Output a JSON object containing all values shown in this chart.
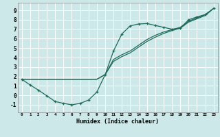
{
  "title": "",
  "xlabel": "Humidex (Indice chaleur)",
  "ylabel": "",
  "background_color": "#cde8e8",
  "grid_color": "#ffffff",
  "line_color": "#1a6b5a",
  "xlim": [
    -0.5,
    23.5
  ],
  "ylim": [
    -1.8,
    9.8
  ],
  "xticks": [
    0,
    1,
    2,
    3,
    4,
    5,
    6,
    7,
    8,
    9,
    10,
    11,
    12,
    13,
    14,
    15,
    16,
    17,
    18,
    19,
    20,
    21,
    22,
    23
  ],
  "yticks": [
    -1,
    0,
    1,
    2,
    3,
    4,
    5,
    6,
    7,
    8,
    9
  ],
  "line1_x": [
    0,
    1,
    2,
    3,
    4,
    5,
    6,
    7,
    8,
    9,
    10,
    11,
    12,
    13,
    14,
    15,
    16,
    17,
    18,
    19,
    20,
    21,
    22,
    23
  ],
  "line1_y": [
    1.7,
    1.1,
    0.55,
    -0.05,
    -0.65,
    -0.85,
    -1.0,
    -0.85,
    -0.5,
    0.35,
    2.2,
    4.7,
    6.5,
    7.35,
    7.55,
    7.6,
    7.4,
    7.2,
    7.0,
    7.1,
    8.0,
    8.3,
    8.55,
    9.2
  ],
  "line2_x": [
    0,
    1,
    2,
    3,
    4,
    5,
    6,
    7,
    8,
    9,
    10,
    11,
    12,
    13,
    14,
    15,
    16,
    17,
    18,
    19,
    20,
    21,
    22,
    23
  ],
  "line2_y": [
    1.7,
    1.7,
    1.7,
    1.7,
    1.7,
    1.7,
    1.7,
    1.7,
    1.7,
    1.7,
    2.2,
    3.6,
    4.1,
    4.5,
    5.1,
    5.7,
    6.15,
    6.55,
    6.85,
    7.1,
    7.75,
    8.1,
    8.45,
    9.2
  ],
  "line3_x": [
    0,
    1,
    2,
    3,
    4,
    5,
    6,
    7,
    8,
    9,
    10,
    11,
    12,
    13,
    14,
    15,
    16,
    17,
    18,
    19,
    20,
    21,
    22,
    23
  ],
  "line3_y": [
    1.7,
    1.7,
    1.7,
    1.7,
    1.7,
    1.7,
    1.7,
    1.7,
    1.7,
    1.7,
    2.2,
    3.8,
    4.3,
    4.7,
    5.3,
    5.9,
    6.35,
    6.7,
    6.95,
    7.2,
    7.85,
    8.2,
    8.55,
    9.2
  ]
}
